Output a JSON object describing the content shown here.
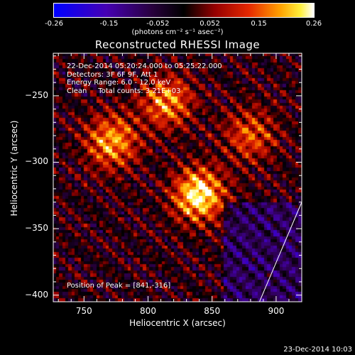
{
  "chart_data": {
    "type": "heatmap",
    "title": "Reconstructed RHESSI Image",
    "xlabel": "Heliocentric X (arcsec)",
    "ylabel": "Heliocentric Y (arcsec)",
    "xlim": [
      726,
      920
    ],
    "ylim": [
      -405,
      -218
    ],
    "x_ticks": [
      "750",
      "800",
      "850",
      "900"
    ],
    "y_ticks": [
      "-250",
      "-300",
      "-350",
      "-400"
    ],
    "colorbar": {
      "ticks": [
        "-0.26",
        "-0.15",
        "-0.052",
        "0.052",
        "0.15",
        "0.26"
      ],
      "range": [
        -0.26,
        0.26
      ],
      "unit": "(photons cm⁻² s⁻¹ asec⁻²)"
    },
    "annotations": [
      "22-Dec-2014 05:20:24.000 to 05:25:22.000",
      "Detectors: 3F 6F 9F, Att 1",
      "Energy Range: 6.0 - 12.0 keV",
      "Clean     Total counts: 3.21E+03"
    ],
    "peak_label": "Position of Peak = [841,-316]",
    "peak": [
      841,
      -316
    ],
    "sources": [
      {
        "x": 772,
        "y": -285,
        "amp": 0.2
      },
      {
        "x": 840,
        "y": -325,
        "amp": 0.26
      },
      {
        "x": 815,
        "y": -255,
        "amp": 0.18
      },
      {
        "x": 880,
        "y": -280,
        "amp": 0.14
      }
    ],
    "limb": [
      [
        887,
        -405
      ],
      [
        920,
        -330
      ]
    ]
  },
  "footer": "23-Dec-2014 10:03"
}
